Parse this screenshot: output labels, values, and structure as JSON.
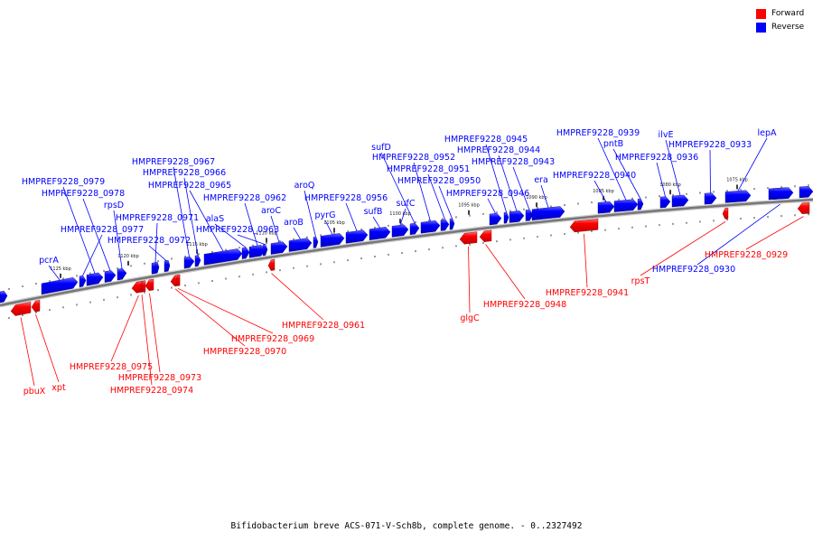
{
  "legend": {
    "items": [
      {
        "label": "Forward",
        "color": "#ff0000"
      },
      {
        "label": "Reverse",
        "color": "#0000ff"
      }
    ]
  },
  "caption": "Bifidobacterium breve ACS-071-V-Sch8b, complete genome. - 0..2327492",
  "colors": {
    "forward": "#ff0000",
    "reverse": "#0000ff",
    "backbone": "#777777"
  },
  "ticks": [
    {
      "label": "1125 kbp",
      "kbp": 1125
    },
    {
      "label": "1120 kbp",
      "kbp": 1120
    },
    {
      "label": "1115 kbp",
      "kbp": 1115
    },
    {
      "label": "1110 kbp",
      "kbp": 1110
    },
    {
      "label": "1105 kbp",
      "kbp": 1105
    },
    {
      "label": "1100 kbp",
      "kbp": 1100
    },
    {
      "label": "1095 kbp",
      "kbp": 1095
    },
    {
      "label": "1090 kbp",
      "kbp": 1090
    },
    {
      "label": "1085 kbp",
      "kbp": 1085
    },
    {
      "label": "1080 kbp",
      "kbp": 1080
    },
    {
      "label": "1075 kbp",
      "kbp": 1075
    }
  ],
  "genes_reverse": [
    {
      "label": "pcrA"
    },
    {
      "label": "HMPREF9228_0979"
    },
    {
      "label": "HMPREF9228_0978"
    },
    {
      "label": "rpsD"
    },
    {
      "label": "HMPREF9228_0977"
    },
    {
      "label": "HMPREF9228_0972"
    },
    {
      "label": "HMPREF9228_0971"
    },
    {
      "label": "HMPREF9228_0967"
    },
    {
      "label": "HMPREF9228_0966"
    },
    {
      "label": "HMPREF9228_0965"
    },
    {
      "label": "alaS"
    },
    {
      "label": "HMPREF9228_0963"
    },
    {
      "label": "HMPREF9228_0962"
    },
    {
      "label": "aroC"
    },
    {
      "label": "aroB"
    },
    {
      "label": "aroQ"
    },
    {
      "label": "pyrG"
    },
    {
      "label": "HMPREF9228_0956"
    },
    {
      "label": "sufB"
    },
    {
      "label": "sufC"
    },
    {
      "label": "sufD"
    },
    {
      "label": "HMPREF9228_0952"
    },
    {
      "label": "HMPREF9228_0951"
    },
    {
      "label": "HMPREF9228_0950"
    },
    {
      "label": "HMPREF9228_0946"
    },
    {
      "label": "HMPREF9228_0945"
    },
    {
      "label": "HMPREF9228_0944"
    },
    {
      "label": "HMPREF9228_0943"
    },
    {
      "label": "era"
    },
    {
      "label": "HMPREF9228_0940"
    },
    {
      "label": "HMPREF9228_0939"
    },
    {
      "label": "pntB"
    },
    {
      "label": "HMPREF9228_0936"
    },
    {
      "label": "ilvE"
    },
    {
      "label": "HMPREF9228_0933"
    },
    {
      "label": "lepA"
    },
    {
      "label": "HMPREF9228_0930"
    }
  ],
  "genes_forward": [
    {
      "label": "pbuX"
    },
    {
      "label": "xpt"
    },
    {
      "label": "HMPREF9228_0975"
    },
    {
      "label": "HMPREF9228_0973"
    },
    {
      "label": "HMPREF9228_0974"
    },
    {
      "label": "HMPREF9228_0970"
    },
    {
      "label": "HMPREF9228_0969"
    },
    {
      "label": "HMPREF9228_0961"
    },
    {
      "label": "glgC"
    },
    {
      "label": "HMPREF9228_0948"
    },
    {
      "label": "HMPREF9228_0941"
    },
    {
      "label": "rpsT"
    },
    {
      "label": "HMPREF9228_0929"
    }
  ]
}
